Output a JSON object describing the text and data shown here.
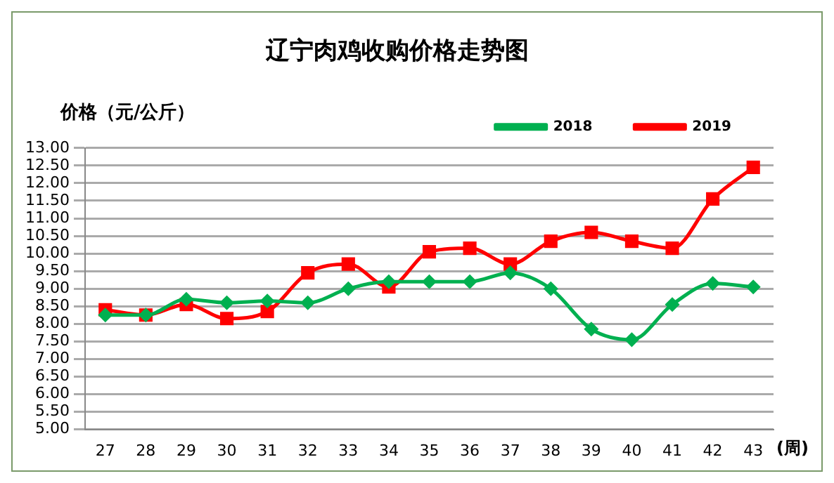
{
  "chart_data": {
    "type": "line",
    "title": "辽宁肉鸡收购价格走势图",
    "ylabel": "价格（元/公斤）",
    "xlabel": "(周)",
    "categories": [
      "27",
      "28",
      "29",
      "30",
      "31",
      "32",
      "33",
      "34",
      "35",
      "36",
      "37",
      "38",
      "39",
      "40",
      "41",
      "42",
      "43"
    ],
    "series": [
      {
        "name": "2018",
        "color": "#00b050",
        "marker": "diamond",
        "values": [
          8.25,
          8.25,
          8.7,
          8.6,
          8.65,
          8.6,
          9.0,
          9.2,
          9.2,
          9.2,
          9.45,
          9.0,
          7.85,
          7.55,
          8.55,
          9.15,
          9.05
        ]
      },
      {
        "name": "2019",
        "color": "#ff0000",
        "marker": "square",
        "values": [
          8.4,
          8.25,
          8.55,
          8.15,
          8.35,
          9.45,
          9.7,
          9.05,
          10.05,
          10.15,
          9.7,
          10.35,
          10.6,
          10.35,
          10.15,
          11.55,
          12.45
        ]
      }
    ],
    "ylim": [
      5,
      13
    ],
    "yticks": [
      {
        "value": 5,
        "label": "5.00"
      },
      {
        "value": 5.5,
        "label": "5.50"
      },
      {
        "value": 6,
        "label": "6.00"
      },
      {
        "value": 6.5,
        "label": "6.50"
      },
      {
        "value": 7,
        "label": "7.00"
      },
      {
        "value": 7.5,
        "label": "7.50"
      },
      {
        "value": 8,
        "label": "8.00"
      },
      {
        "value": 8.5,
        "label": "8.50"
      },
      {
        "value": 9,
        "label": "9.00"
      },
      {
        "value": 9.5,
        "label": "9.50"
      },
      {
        "value": 10,
        "label": "10.00"
      },
      {
        "value": 10.5,
        "label": "10.50"
      },
      {
        "value": 11,
        "label": "11.00"
      },
      {
        "value": 11.5,
        "label": "11.50"
      },
      {
        "value": 12,
        "label": "12.00"
      },
      {
        "value": 12.5,
        "label": "12.50"
      },
      {
        "value": 13,
        "label": "13.00"
      }
    ],
    "grid": "y",
    "legend": "top right"
  }
}
